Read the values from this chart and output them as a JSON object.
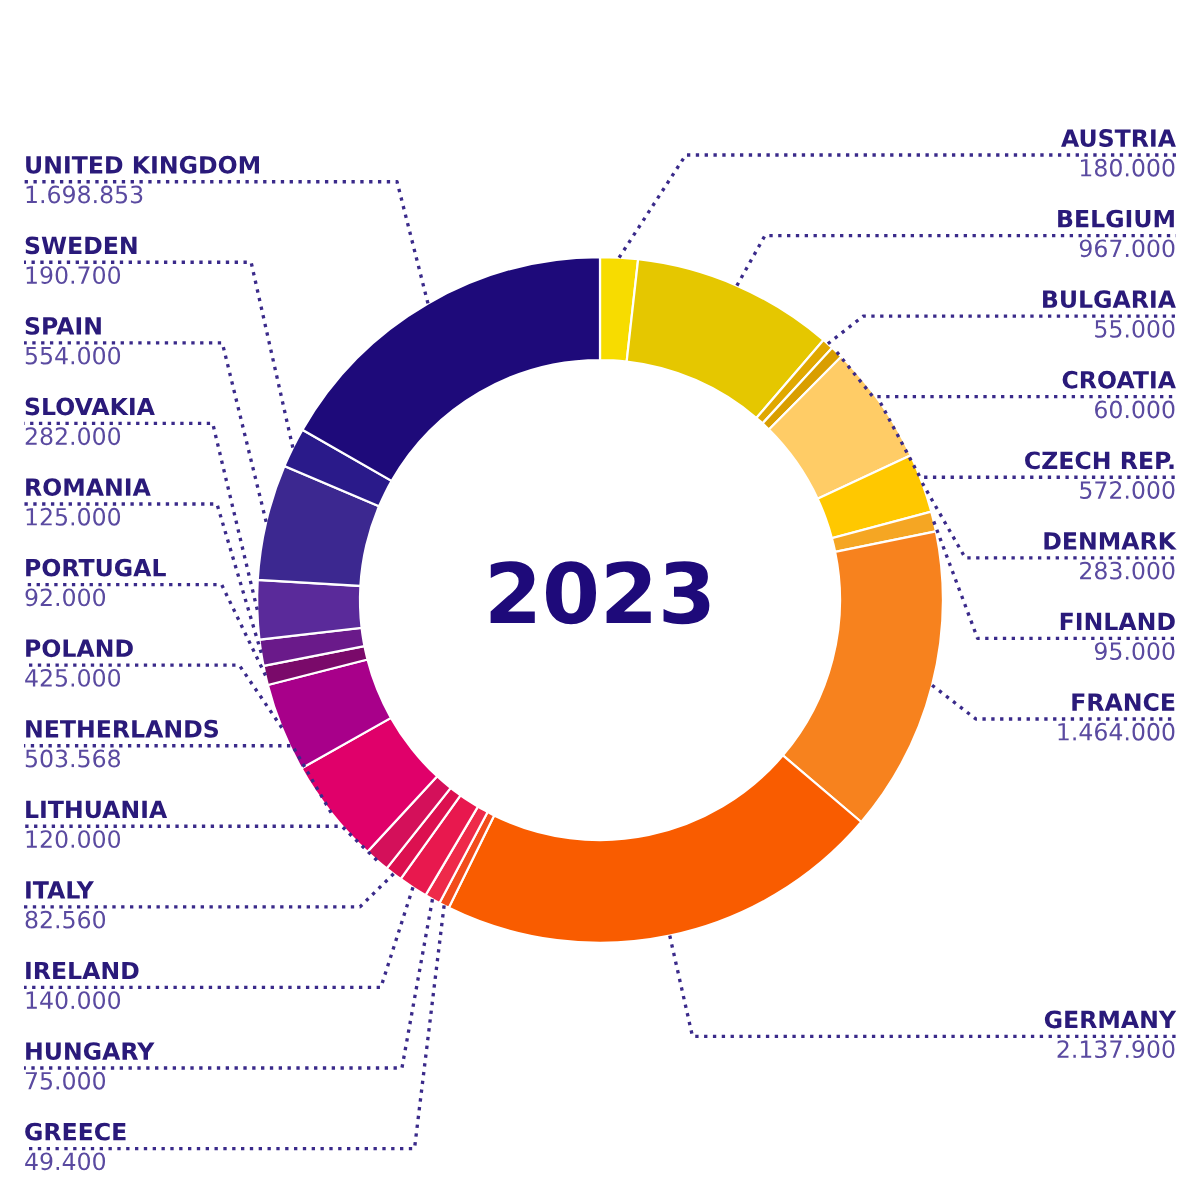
{
  "chart_data": {
    "type": "donut",
    "title": "2023",
    "categories": [
      "AUSTRIA",
      "BELGIUM",
      "BULGARIA",
      "CROATIA",
      "CZECH REP.",
      "DENMARK",
      "FINLAND",
      "FRANCE",
      "GERMANY",
      "GREECE",
      "HUNGARY",
      "IRELAND",
      "ITALY",
      "LITHUANIA",
      "NETHERLANDS",
      "POLAND",
      "PORTUGAL",
      "ROMANIA",
      "SLOVAKIA",
      "SPAIN",
      "SWEDEN",
      "UNITED KINGDOM"
    ],
    "values": [
      180000,
      967000,
      55000,
      60000,
      572000,
      283000,
      95000,
      1464000,
      2137900,
      49400,
      75000,
      140000,
      82560,
      120000,
      503568,
      425000,
      92000,
      125000,
      282000,
      554000,
      190700,
      1698853
    ],
    "value_labels": [
      "180.000",
      "967.000",
      "55.000",
      "60.000",
      "572.000",
      "283.000",
      "95.000",
      "1.464.000",
      "2.137.900",
      "49.400",
      "75.000",
      "140.000",
      "82.560",
      "120.000",
      "503.568",
      "425.000",
      "92.000",
      "125.000",
      "282.000",
      "554.000",
      "190.700",
      "1.698.853"
    ],
    "colors": [
      "#f7dc00",
      "#e5c700",
      "#e0a800",
      "#d99e00",
      "#ffcc66",
      "#ffc800",
      "#f5a623",
      "#f7821e",
      "#f95c00",
      "#f24c1a",
      "#ee2a4a",
      "#e8184e",
      "#dc1050",
      "#d4105a",
      "#e0006a",
      "#a8008a",
      "#7a0a6a",
      "#6a1a8a",
      "#5a2a9a",
      "#3c2890",
      "#2a1a8a",
      "#1e0a7a"
    ]
  }
}
